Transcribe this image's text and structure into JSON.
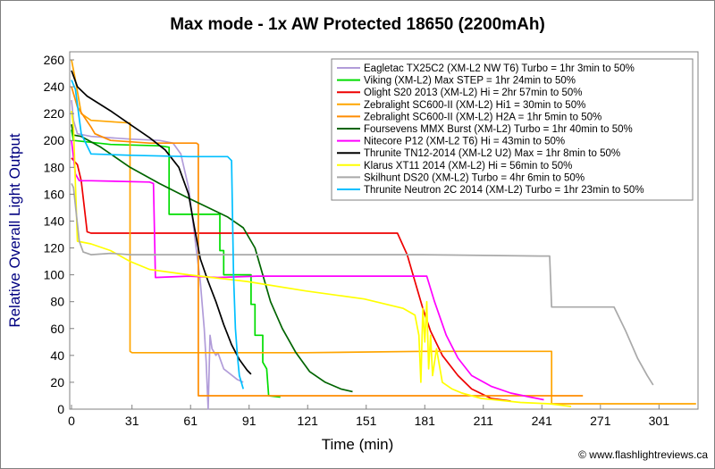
{
  "chart_data": {
    "type": "line",
    "title": "Max mode - 1x AW Protected 18650 (2200mAh)",
    "xlabel": "Time (min)",
    "ylabel": "Relative Overall Light Output",
    "credit": "© www.flashlightreviews.ca",
    "xlim": [
      0,
      320
    ],
    "ylim": [
      0,
      265
    ],
    "x_ticks": [
      0,
      31,
      61,
      91,
      121,
      151,
      181,
      211,
      241,
      271,
      301
    ],
    "y_ticks": [
      0,
      20,
      40,
      60,
      80,
      100,
      120,
      140,
      160,
      180,
      200,
      220,
      240,
      260
    ],
    "grid": false,
    "legend_position": "top-right",
    "series": [
      {
        "name": "Eagletac TX25C2 (XM-L2 NW T6) Turbo = 1hr 3min to 50%",
        "color": "#b19cd9",
        "points": [
          [
            0,
            230
          ],
          [
            1,
            215
          ],
          [
            3,
            205
          ],
          [
            10,
            203
          ],
          [
            30,
            201
          ],
          [
            45,
            200
          ],
          [
            52,
            198
          ],
          [
            56,
            190
          ],
          [
            60,
            165
          ],
          [
            63,
            130
          ],
          [
            66,
            95
          ],
          [
            68,
            60
          ],
          [
            69,
            35
          ],
          [
            70,
            0
          ],
          [
            71,
            55
          ],
          [
            72,
            45
          ],
          [
            74,
            40
          ],
          [
            75,
            42
          ],
          [
            78,
            30
          ],
          [
            85,
            22
          ],
          [
            88,
            20
          ]
        ]
      },
      {
        "name": "Viking (XM-L2) Max STEP = 1hr 24min to 50%",
        "color": "#00dd00",
        "points": [
          [
            0,
            208
          ],
          [
            1,
            200
          ],
          [
            20,
            197
          ],
          [
            45,
            196
          ],
          [
            50,
            195
          ],
          [
            50,
            145
          ],
          [
            76,
            145
          ],
          [
            76,
            118
          ],
          [
            78,
            118
          ],
          [
            78,
            100
          ],
          [
            92,
            100
          ],
          [
            92,
            78
          ],
          [
            94,
            78
          ],
          [
            94,
            55
          ],
          [
            98,
            55
          ],
          [
            98,
            35
          ],
          [
            100,
            30
          ],
          [
            101,
            10
          ],
          [
            107,
            9
          ]
        ]
      },
      {
        "name": "Olight S20 2013 (XM-L2) Hi = 2hr 57min to 50%",
        "color": "#ee0000",
        "points": [
          [
            0,
            187
          ],
          [
            3,
            182
          ],
          [
            5,
            170
          ],
          [
            8,
            132
          ],
          [
            10,
            131
          ],
          [
            100,
            131
          ],
          [
            140,
            131
          ],
          [
            167,
            131
          ],
          [
            172,
            115
          ],
          [
            176,
            95
          ],
          [
            180,
            75
          ],
          [
            184,
            58
          ],
          [
            190,
            40
          ],
          [
            198,
            25
          ],
          [
            205,
            15
          ],
          [
            215,
            8
          ],
          [
            225,
            6
          ]
        ]
      },
      {
        "name": "Zebralight SC600-II (XM-L2) Hi1 = 30min to 50%",
        "color": "#ffa500",
        "points": [
          [
            0,
            260
          ],
          [
            2,
            245
          ],
          [
            5,
            220
          ],
          [
            10,
            215
          ],
          [
            20,
            214
          ],
          [
            30,
            213
          ],
          [
            30,
            43
          ],
          [
            31,
            42
          ],
          [
            60,
            42
          ],
          [
            120,
            42
          ],
          [
            180,
            43
          ],
          [
            240,
            43
          ],
          [
            246,
            43
          ],
          [
            246,
            4
          ],
          [
            320,
            4
          ]
        ]
      },
      {
        "name": "Zebralight SC600-II (XM-L2) H2A = 1hr 5min to 50%",
        "color": "#ff8c00",
        "points": [
          [
            0,
            240
          ],
          [
            3,
            225
          ],
          [
            10,
            210
          ],
          [
            12,
            205
          ],
          [
            20,
            200
          ],
          [
            40,
            198
          ],
          [
            64,
            198
          ],
          [
            65,
            197
          ],
          [
            65,
            10
          ],
          [
            100,
            10
          ],
          [
            160,
            10
          ],
          [
            200,
            10
          ],
          [
            262,
            10
          ]
        ]
      },
      {
        "name": "Foursevens MMX Burst (XM-L2) Turbo = 1hr 40min to 50%",
        "color": "#006400",
        "points": [
          [
            0,
            212
          ],
          [
            1,
            204
          ],
          [
            5,
            203
          ],
          [
            15,
            195
          ],
          [
            30,
            180
          ],
          [
            45,
            168
          ],
          [
            60,
            157
          ],
          [
            70,
            150
          ],
          [
            80,
            143
          ],
          [
            88,
            135
          ],
          [
            94,
            120
          ],
          [
            98,
            100
          ],
          [
            102,
            80
          ],
          [
            108,
            60
          ],
          [
            115,
            42
          ],
          [
            122,
            28
          ],
          [
            130,
            20
          ],
          [
            138,
            15
          ],
          [
            144,
            13
          ]
        ]
      },
      {
        "name": "Nitecore P12 (XM-L2 T6) Hi = 43min to 50%",
        "color": "#ff00ff",
        "points": [
          [
            0,
            200
          ],
          [
            2,
            175
          ],
          [
            4,
            170
          ],
          [
            10,
            170
          ],
          [
            40,
            169
          ],
          [
            42,
            168
          ],
          [
            43,
            98
          ],
          [
            60,
            99
          ],
          [
            75,
            98
          ],
          [
            95,
            99
          ],
          [
            120,
            99
          ],
          [
            150,
            99
          ],
          [
            180,
            99
          ],
          [
            182,
            99
          ],
          [
            186,
            80
          ],
          [
            192,
            55
          ],
          [
            198,
            38
          ],
          [
            205,
            25
          ],
          [
            215,
            17
          ],
          [
            225,
            12
          ],
          [
            235,
            9
          ],
          [
            242,
            7
          ]
        ]
      },
      {
        "name": "Thrunite TN12-2014 (XM-L2 U2) Max = 1hr 8min to 50%",
        "color": "#000000",
        "points": [
          [
            0,
            252
          ],
          [
            3,
            240
          ],
          [
            8,
            233
          ],
          [
            20,
            222
          ],
          [
            30,
            212
          ],
          [
            40,
            202
          ],
          [
            48,
            193
          ],
          [
            55,
            180
          ],
          [
            60,
            160
          ],
          [
            63,
            135
          ],
          [
            66,
            112
          ],
          [
            70,
            95
          ],
          [
            74,
            80
          ],
          [
            78,
            63
          ],
          [
            82,
            48
          ],
          [
            86,
            37
          ],
          [
            90,
            29
          ],
          [
            92,
            26
          ]
        ]
      },
      {
        "name": "Klarus XT11 2014 (XM-L2) Hi = 56min to 50%",
        "color": "#ffff00",
        "points": [
          [
            0,
            222
          ],
          [
            1,
            210
          ],
          [
            3,
            125
          ],
          [
            10,
            123
          ],
          [
            20,
            118
          ],
          [
            30,
            110
          ],
          [
            40,
            104
          ],
          [
            60,
            100
          ],
          [
            90,
            95
          ],
          [
            120,
            88
          ],
          [
            150,
            82
          ],
          [
            170,
            75
          ],
          [
            176,
            70
          ],
          [
            178,
            55
          ],
          [
            179,
            20
          ],
          [
            180,
            75
          ],
          [
            181,
            50
          ],
          [
            182,
            80
          ],
          [
            183,
            30
          ],
          [
            184,
            55
          ],
          [
            185,
            25
          ],
          [
            187,
            45
          ],
          [
            190,
            20
          ],
          [
            195,
            15
          ],
          [
            200,
            12
          ],
          [
            210,
            8
          ],
          [
            230,
            5
          ],
          [
            245,
            4
          ],
          [
            256,
            2
          ]
        ]
      },
      {
        "name": "Skilhunt DS20 (XM-L2) Turbo = 4hr 6min to 50%",
        "color": "#a9a9a9",
        "points": [
          [
            0,
            168
          ],
          [
            1,
            165
          ],
          [
            4,
            125
          ],
          [
            6,
            117
          ],
          [
            10,
            115
          ],
          [
            20,
            116
          ],
          [
            30,
            115
          ],
          [
            60,
            115
          ],
          [
            120,
            115
          ],
          [
            180,
            115
          ],
          [
            240,
            114
          ],
          [
            245,
            114
          ],
          [
            246,
            76
          ],
          [
            278,
            76
          ],
          [
            284,
            58
          ],
          [
            290,
            38
          ],
          [
            295,
            25
          ],
          [
            298,
            18
          ]
        ]
      },
      {
        "name": "Thrunite Neutron 2C 2014 (XM-L2) Turbo = 1hr 23min to 50%",
        "color": "#00bfff",
        "points": [
          [
            0,
            245
          ],
          [
            2,
            238
          ],
          [
            5,
            205
          ],
          [
            10,
            190
          ],
          [
            30,
            189
          ],
          [
            60,
            188
          ],
          [
            80,
            188
          ],
          [
            82,
            185
          ],
          [
            83,
            100
          ],
          [
            84,
            60
          ],
          [
            85,
            40
          ],
          [
            86,
            25
          ],
          [
            87,
            20
          ],
          [
            88,
            15
          ]
        ]
      }
    ]
  }
}
